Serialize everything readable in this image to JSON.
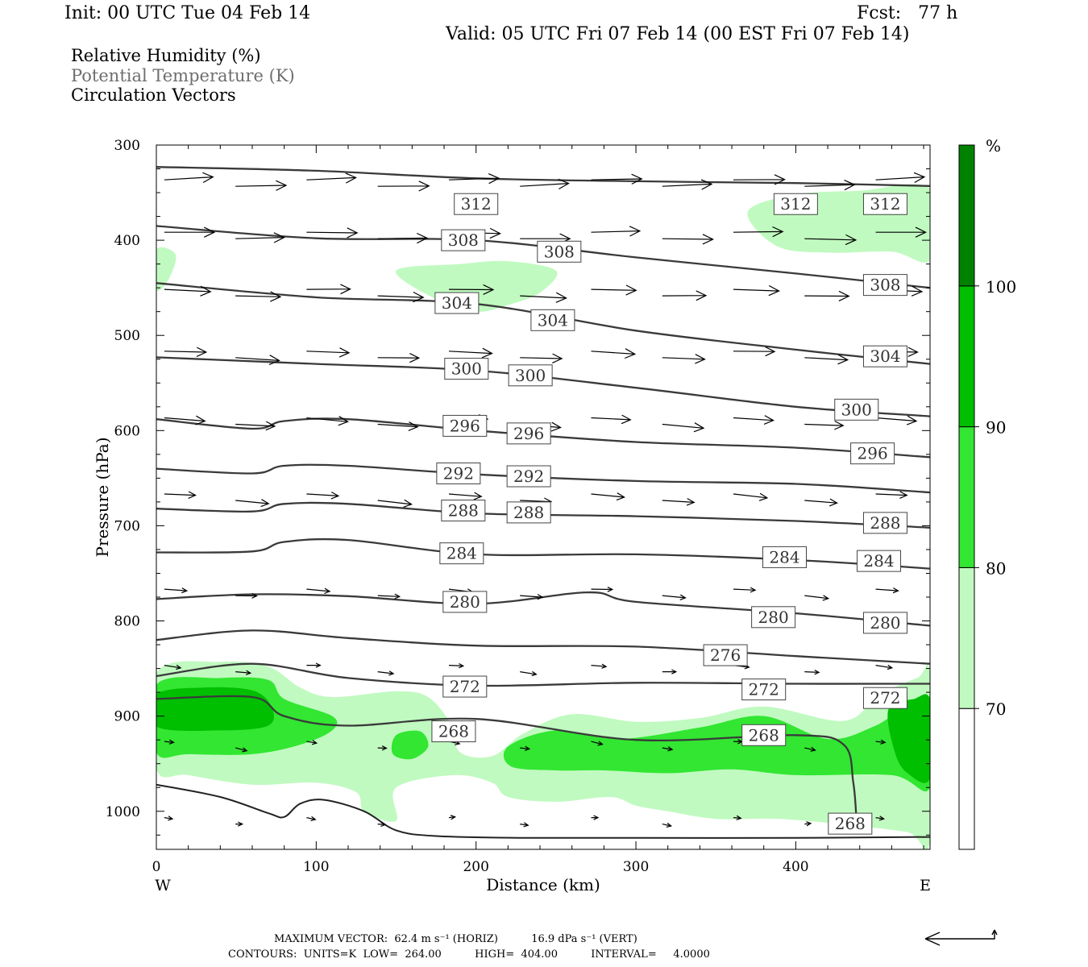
{
  "header": {
    "init": "Init: 00 UTC Tue 04 Feb 14",
    "fcst": "Fcst:   77 h",
    "valid": "Valid: 05 UTC Fri 07 Feb 14 (00 EST Fri 07 Feb 14)"
  },
  "legend_lines": [
    {
      "text": "Relative Humidity (%)",
      "color": "#000000"
    },
    {
      "text": "Potential Temperature (K)",
      "color": "#6e6e6e"
    },
    {
      "text": "Circulation Vectors",
      "color": "#000000"
    }
  ],
  "footer": {
    "line1": "MAXIMUM VECTOR:  62.4 m s⁻¹ (HORIZ)          16.9 dPa s⁻¹ (VERT)",
    "line2": "CONTOURS:  UNITS=K  LOW=  264.00          HIGH=  404.00          INTERVAL=     4.0000"
  },
  "chart_data": {
    "type": "cross-section",
    "xlabel": "Distance (km)",
    "ylabel": "Pressure (hPa)",
    "xlim": [
      0,
      484
    ],
    "ylim": [
      1040,
      300
    ],
    "x_ticks": [
      0,
      100,
      200,
      300,
      400
    ],
    "y_ticks": [
      300,
      400,
      500,
      600,
      700,
      800,
      900,
      1000
    ],
    "x_end_labels": {
      "left": "W",
      "right": "E"
    },
    "colorbar": {
      "unit": "%",
      "levels": [
        70,
        80,
        90,
        100
      ],
      "colors": [
        "#ffffff",
        "#c0fac0",
        "#32e632",
        "#00be00",
        "#008200"
      ]
    },
    "theta_contours": [
      {
        "level": 312,
        "points": [
          [
            0,
            323
          ],
          [
            100,
            327
          ],
          [
            200,
            335
          ],
          [
            300,
            338
          ],
          [
            400,
            340
          ],
          [
            484,
            343
          ]
        ],
        "labels": [
          [
            200,
            362
          ],
          [
            400,
            362
          ],
          [
            456,
            362
          ]
        ]
      },
      {
        "level": 308,
        "points": [
          [
            0,
            385
          ],
          [
            100,
            398
          ],
          [
            200,
            400
          ],
          [
            300,
            418
          ],
          [
            400,
            435
          ],
          [
            484,
            450
          ]
        ],
        "labels": [
          [
            192,
            400
          ],
          [
            252,
            412
          ],
          [
            456,
            447
          ]
        ]
      },
      {
        "level": 304,
        "points": [
          [
            0,
            445
          ],
          [
            100,
            460
          ],
          [
            200,
            467
          ],
          [
            300,
            495
          ],
          [
            400,
            515
          ],
          [
            484,
            530
          ]
        ],
        "labels": [
          [
            188,
            466
          ],
          [
            248,
            484
          ],
          [
            456,
            522
          ]
        ]
      },
      {
        "level": 300,
        "points": [
          [
            0,
            523
          ],
          [
            100,
            530
          ],
          [
            200,
            537
          ],
          [
            300,
            555
          ],
          [
            400,
            575
          ],
          [
            484,
            585
          ]
        ],
        "labels": [
          [
            194,
            535
          ],
          [
            234,
            542
          ],
          [
            438,
            578
          ]
        ]
      },
      {
        "level": 296,
        "points": [
          [
            0,
            588
          ],
          [
            60,
            598
          ],
          [
            80,
            590
          ],
          [
            120,
            588
          ],
          [
            200,
            600
          ],
          [
            300,
            612
          ],
          [
            400,
            618
          ],
          [
            484,
            628
          ]
        ],
        "labels": [
          [
            193,
            595
          ],
          [
            233,
            603
          ],
          [
            448,
            624
          ]
        ]
      },
      {
        "level": 292,
        "points": [
          [
            0,
            640
          ],
          [
            60,
            645
          ],
          [
            80,
            637
          ],
          [
            120,
            637
          ],
          [
            200,
            646
          ],
          [
            300,
            653
          ],
          [
            400,
            656
          ],
          [
            484,
            665
          ]
        ],
        "labels": [
          [
            189,
            645
          ],
          [
            233,
            648
          ]
        ]
      },
      {
        "level": 288,
        "points": [
          [
            0,
            682
          ],
          [
            60,
            685
          ],
          [
            80,
            677
          ],
          [
            120,
            677
          ],
          [
            200,
            687
          ],
          [
            300,
            690
          ],
          [
            400,
            695
          ],
          [
            484,
            702
          ]
        ],
        "labels": [
          [
            192,
            684
          ],
          [
            233,
            686
          ],
          [
            456,
            697
          ]
        ]
      },
      {
        "level": 284,
        "points": [
          [
            0,
            728
          ],
          [
            60,
            727
          ],
          [
            80,
            717
          ],
          [
            120,
            715
          ],
          [
            200,
            730
          ],
          [
            300,
            730
          ],
          [
            400,
            736
          ],
          [
            484,
            745
          ]
        ],
        "labels": [
          [
            191,
            729
          ],
          [
            393,
            733
          ],
          [
            452,
            737
          ]
        ]
      },
      {
        "level": 280,
        "points": [
          [
            0,
            777
          ],
          [
            60,
            772
          ],
          [
            120,
            774
          ],
          [
            200,
            782
          ],
          [
            270,
            770
          ],
          [
            300,
            780
          ],
          [
            400,
            792
          ],
          [
            484,
            805
          ]
        ],
        "labels": [
          [
            193,
            780
          ],
          [
            386,
            796
          ],
          [
            456,
            802
          ]
        ]
      },
      {
        "level": 276,
        "points": [
          [
            0,
            820
          ],
          [
            60,
            810
          ],
          [
            120,
            818
          ],
          [
            200,
            826
          ],
          [
            300,
            827
          ],
          [
            400,
            837
          ],
          [
            484,
            845
          ]
        ],
        "labels": [
          [
            356,
            836
          ]
        ]
      },
      {
        "level": 272,
        "points": [
          [
            0,
            858
          ],
          [
            60,
            845
          ],
          [
            120,
            860
          ],
          [
            200,
            868
          ],
          [
            300,
            865
          ],
          [
            400,
            866
          ],
          [
            484,
            866
          ]
        ],
        "labels": [
          [
            193,
            869
          ],
          [
            380,
            872
          ],
          [
            456,
            881
          ]
        ]
      },
      {
        "level": 268,
        "points": [
          [
            0,
            882
          ],
          [
            60,
            880
          ],
          [
            80,
            900
          ],
          [
            120,
            910
          ],
          [
            200,
            903
          ],
          [
            300,
            925
          ],
          [
            400,
            920
          ],
          [
            430,
            930
          ],
          [
            436,
            970
          ],
          [
            438,
            1010
          ]
        ],
        "labels": [
          [
            186,
            916
          ],
          [
            380,
            920
          ],
          [
            434,
            1013
          ]
        ]
      }
    ],
    "rh_regions": [
      {
        "level": 70,
        "points": [
          [
            0,
            855
          ],
          [
            40,
            843
          ],
          [
            70,
            848
          ],
          [
            90,
            870
          ],
          [
            110,
            880
          ],
          [
            150,
            874
          ],
          [
            170,
            880
          ],
          [
            184,
            908
          ],
          [
            190,
            938
          ],
          [
            210,
            942
          ],
          [
            230,
            918
          ],
          [
            260,
            898
          ],
          [
            300,
            906
          ],
          [
            340,
            902
          ],
          [
            380,
            890
          ],
          [
            430,
            905
          ],
          [
            452,
            878
          ],
          [
            476,
            860
          ],
          [
            484,
            858
          ],
          [
            484,
            1030
          ],
          [
            470,
            1022
          ],
          [
            430,
            1014
          ],
          [
            390,
            1008
          ],
          [
            350,
            1008
          ],
          [
            320,
            1000
          ],
          [
            300,
            994
          ],
          [
            284,
            985
          ],
          [
            250,
            990
          ],
          [
            220,
            985
          ],
          [
            210,
            970
          ],
          [
            186,
            962
          ],
          [
            150,
            975
          ],
          [
            150,
            1010
          ],
          [
            130,
            1000
          ],
          [
            125,
            980
          ],
          [
            100,
            970
          ],
          [
            60,
            972
          ],
          [
            20,
            962
          ],
          [
            0,
            955
          ]
        ]
      },
      {
        "level": 80,
        "points": [
          [
            0,
            867
          ],
          [
            40,
            860
          ],
          [
            70,
            862
          ],
          [
            80,
            882
          ],
          [
            110,
            900
          ],
          [
            110,
            915
          ],
          [
            90,
            930
          ],
          [
            60,
            940
          ],
          [
            20,
            940
          ],
          [
            0,
            938
          ]
        ]
      },
      {
        "level": 80,
        "points": [
          [
            220,
            932
          ],
          [
            250,
            915
          ],
          [
            290,
            924
          ],
          [
            340,
            912
          ],
          [
            380,
            900
          ],
          [
            420,
            924
          ],
          [
            450,
            910
          ],
          [
            484,
            880
          ],
          [
            484,
            975
          ],
          [
            460,
            962
          ],
          [
            400,
            962
          ],
          [
            360,
            956
          ],
          [
            320,
            960
          ],
          [
            280,
            957
          ],
          [
            250,
            957
          ],
          [
            222,
            953
          ]
        ]
      },
      {
        "level": 80,
        "points": [
          [
            150,
            920
          ],
          [
            165,
            916
          ],
          [
            170,
            932
          ],
          [
            160,
            945
          ],
          [
            148,
            940
          ]
        ]
      },
      {
        "level": 90,
        "points": [
          [
            0,
            877
          ],
          [
            30,
            870
          ],
          [
            60,
            873
          ],
          [
            72,
            890
          ],
          [
            70,
            910
          ],
          [
            40,
            915
          ],
          [
            0,
            911
          ]
        ]
      },
      {
        "level": 90,
        "points": [
          [
            458,
            893
          ],
          [
            474,
            882
          ],
          [
            484,
            884
          ],
          [
            484,
            965
          ],
          [
            470,
            960
          ],
          [
            462,
            938
          ]
        ]
      },
      {
        "level": 70,
        "points": [
          [
            370,
            370
          ],
          [
            400,
            352
          ],
          [
            440,
            348
          ],
          [
            484,
            346
          ],
          [
            484,
            420
          ],
          [
            460,
            412
          ],
          [
            420,
            413
          ],
          [
            388,
            406
          ]
        ]
      },
      {
        "level": 70,
        "points": [
          [
            150,
            432
          ],
          [
            190,
            425
          ],
          [
            220,
            422
          ],
          [
            250,
            432
          ],
          [
            240,
            455
          ],
          [
            220,
            468
          ],
          [
            200,
            475
          ],
          [
            175,
            462
          ]
        ]
      },
      {
        "level": 70,
        "points": [
          [
            0,
            410
          ],
          [
            12,
            415
          ],
          [
            8,
            440
          ],
          [
            0,
            452
          ]
        ]
      }
    ],
    "vector_rows": [
      {
        "pressure": 340,
        "u": 1.0,
        "w": -0.05
      },
      {
        "pressure": 395,
        "u": 1.0,
        "w": 0.0
      },
      {
        "pressure": 455,
        "u": 0.9,
        "w": 0.03
      },
      {
        "pressure": 520,
        "u": 0.85,
        "w": 0.05
      },
      {
        "pressure": 590,
        "u": 0.8,
        "w": 0.08
      },
      {
        "pressure": 670,
        "u": 0.65,
        "w": 0.08
      },
      {
        "pressure": 770,
        "u": 0.45,
        "w": 0.05
      },
      {
        "pressure": 850,
        "u": 0.3,
        "w": 0.04
      },
      {
        "pressure": 930,
        "u": 0.2,
        "w": 0.05
      },
      {
        "pressure": 1010,
        "u": 0.15,
        "w": 0.02
      }
    ],
    "ground_line": [
      [
        0,
        972
      ],
      [
        40,
        985
      ],
      [
        70,
        1002
      ],
      [
        80,
        1006
      ],
      [
        90,
        992
      ],
      [
        105,
        988
      ],
      [
        130,
        1000
      ],
      [
        150,
        1020
      ],
      [
        175,
        1026
      ],
      [
        230,
        1028
      ],
      [
        300,
        1028
      ],
      [
        400,
        1028
      ],
      [
        484,
        1027
      ]
    ],
    "max_vector_key": {
      "u": 62.4,
      "w": 16.9
    }
  }
}
